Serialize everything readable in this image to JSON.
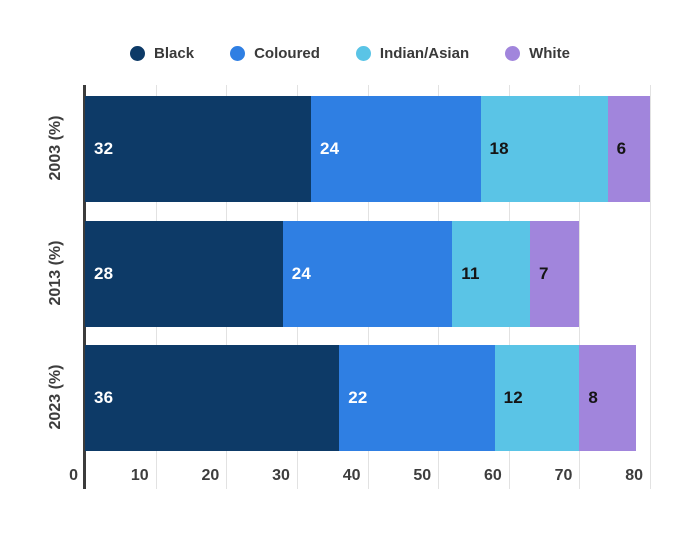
{
  "chart_data": {
    "type": "bar",
    "stacked": true,
    "orientation": "horizontal",
    "title": "",
    "xlabel": "",
    "ylabel": "",
    "categories": [
      "2003 (%)",
      "2013 (%)",
      "2023 (%)"
    ],
    "series": [
      {
        "name": "Black",
        "color": "#0d3a67",
        "label_color": "#ffffff",
        "values": [
          32,
          28,
          36
        ]
      },
      {
        "name": "Coloured",
        "color": "#2f7fe3",
        "label_color": "#ffffff",
        "values": [
          24,
          24,
          22
        ]
      },
      {
        "name": "Indian/Asian",
        "color": "#5ac4e6",
        "label_color": "#151515",
        "values": [
          18,
          11,
          12
        ]
      },
      {
        "name": "White",
        "color": "#a185dc",
        "label_color": "#151515",
        "values": [
          6,
          7,
          8
        ]
      }
    ],
    "totals": [
      80,
      70,
      78
    ],
    "x_ticks": [
      0,
      10,
      20,
      30,
      40,
      50,
      60,
      70,
      80
    ],
    "xlim": [
      0,
      80
    ],
    "grid": true,
    "legend_position": "top",
    "value_labels_shown": true
  },
  "style": {
    "axis_line_color": "#3c3c3c",
    "gridline_color": "#e2e2e2",
    "axis_text_color": "#3d3d3d",
    "legend_text_color": "#3a3a3a",
    "background": "#ffffff"
  }
}
